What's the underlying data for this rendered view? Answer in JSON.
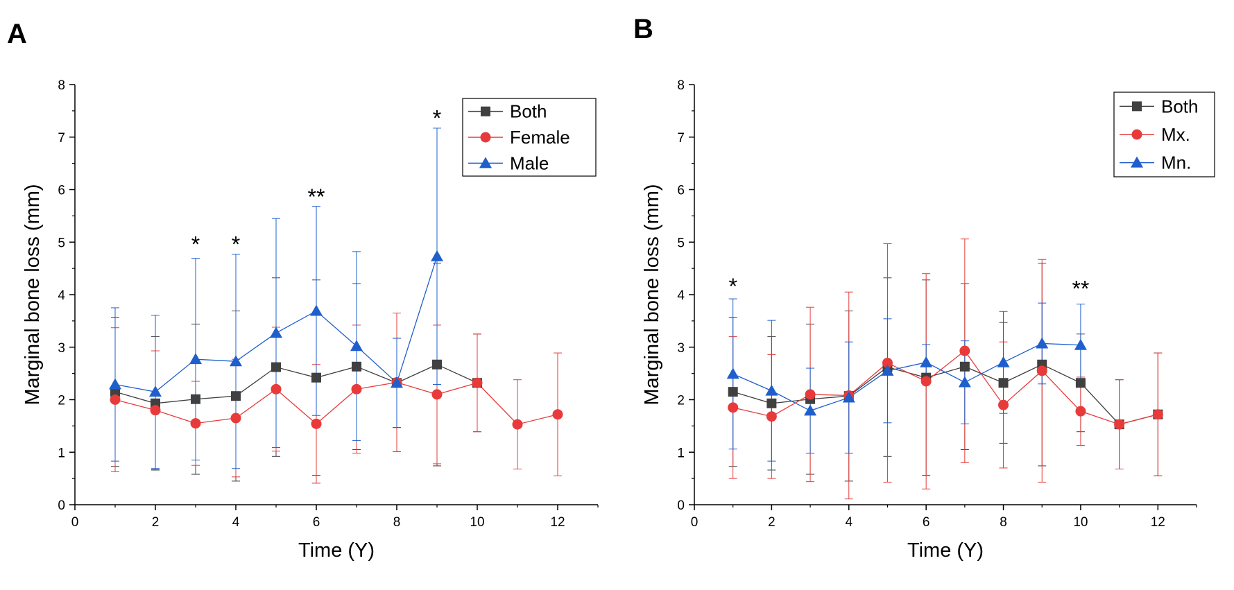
{
  "chart_data": [
    {
      "panel": "A",
      "type": "line",
      "title": "",
      "xlabel": "Time (Y)",
      "ylabel": "Marginal bone loss (mm)",
      "xlim": [
        0,
        13
      ],
      "ylim": [
        0,
        8
      ],
      "xticks": [
        0,
        2,
        4,
        6,
        8,
        10,
        12
      ],
      "yticks": [
        0,
        1,
        2,
        3,
        4,
        5,
        6,
        7,
        8
      ],
      "legend_position": "top-right",
      "series": [
        {
          "name": "Both",
          "color": "#404040",
          "marker": "square",
          "x": [
            1,
            2,
            3,
            4,
            5,
            6,
            7,
            8,
            9,
            10
          ],
          "y": [
            2.15,
            1.93,
            2.01,
            2.07,
            2.62,
            2.42,
            2.63,
            2.32,
            2.67,
            2.32
          ],
          "err": [
            1.42,
            1.27,
            1.43,
            1.62,
            1.7,
            1.86,
            1.58,
            0.85,
            1.93,
            0.93
          ]
        },
        {
          "name": "Female",
          "color": "#e83a3a",
          "marker": "circle",
          "x": [
            1,
            2,
            3,
            4,
            5,
            6,
            7,
            8,
            9,
            10,
            11,
            12
          ],
          "y": [
            2.0,
            1.8,
            1.55,
            1.65,
            2.2,
            1.54,
            2.2,
            2.33,
            2.1,
            2.32,
            1.53,
            1.72
          ],
          "err": [
            1.37,
            1.13,
            0.8,
            1.12,
            1.18,
            1.13,
            1.22,
            1.32,
            1.32,
            0.93,
            0.85,
            1.17
          ]
        },
        {
          "name": "Male",
          "color": "#1f5fcc",
          "marker": "triangle",
          "x": [
            1,
            2,
            3,
            4,
            5,
            6,
            7,
            8,
            9
          ],
          "y": [
            2.29,
            2.15,
            2.77,
            2.73,
            3.27,
            3.69,
            3.02,
            2.32,
            4.73
          ],
          "err": [
            1.46,
            1.46,
            1.92,
            2.04,
            2.18,
            1.99,
            1.8,
            0.85,
            2.44
          ]
        }
      ],
      "annotations": [
        {
          "x": 3,
          "y": 5.0,
          "text": "*"
        },
        {
          "x": 4,
          "y": 5.0,
          "text": "*"
        },
        {
          "x": 6,
          "y": 5.9,
          "text": "**"
        },
        {
          "x": 9,
          "y": 7.4,
          "text": "*"
        }
      ]
    },
    {
      "panel": "B",
      "type": "line",
      "title": "",
      "xlabel": "Time (Y)",
      "ylabel": "Marginal bone loss (mm)",
      "xlim": [
        0,
        13
      ],
      "ylim": [
        0,
        8
      ],
      "xticks": [
        0,
        2,
        4,
        6,
        8,
        10,
        12
      ],
      "yticks": [
        0,
        1,
        2,
        3,
        4,
        5,
        6,
        7,
        8
      ],
      "legend_position": "top-right",
      "series": [
        {
          "name": "Both",
          "color": "#404040",
          "marker": "square",
          "x": [
            1,
            2,
            3,
            4,
            5,
            6,
            7,
            8,
            9,
            10,
            11,
            12
          ],
          "y": [
            2.15,
            1.93,
            2.01,
            2.07,
            2.62,
            2.42,
            2.63,
            2.32,
            2.67,
            2.32,
            1.53,
            1.72
          ],
          "err": [
            1.42,
            1.27,
            1.43,
            1.62,
            1.7,
            1.86,
            1.58,
            1.15,
            1.93,
            0.93,
            0.85,
            1.17
          ]
        },
        {
          "name": "Mx.",
          "color": "#e83a3a",
          "marker": "circle",
          "x": [
            1,
            2,
            3,
            4,
            5,
            6,
            7,
            8,
            9,
            10,
            11,
            12
          ],
          "y": [
            1.85,
            1.68,
            2.1,
            2.08,
            2.7,
            2.35,
            2.93,
            1.9,
            2.55,
            1.78,
            1.53,
            1.72
          ],
          "err": [
            1.35,
            1.18,
            1.66,
            1.97,
            2.27,
            2.05,
            2.13,
            1.2,
            2.12,
            0.65,
            0.85,
            1.17
          ]
        },
        {
          "name": "Mn.",
          "color": "#1f5fcc",
          "marker": "triangle",
          "x": [
            1,
            2,
            3,
            4,
            5,
            6,
            7,
            8,
            9,
            10
          ],
          "y": [
            2.49,
            2.17,
            1.79,
            2.04,
            2.55,
            2.71,
            2.33,
            2.71,
            3.07,
            3.04
          ],
          "err": [
            1.43,
            1.34,
            0.81,
            1.06,
            0.99,
            0.34,
            0.79,
            0.97,
            0.77,
            0.78
          ]
        }
      ],
      "annotations": [
        {
          "x": 1,
          "y": 4.2,
          "text": "*"
        },
        {
          "x": 10,
          "y": 4.15,
          "text": "**"
        }
      ]
    }
  ]
}
